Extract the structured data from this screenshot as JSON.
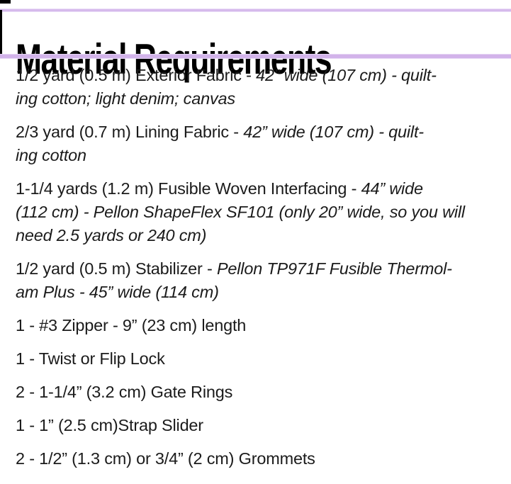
{
  "page": {
    "background": "#ffffff",
    "accent_rule_color": "#d5b9ec",
    "accent_rule_edge_color": "#e9dcf6",
    "text_color": "#1b1b1b",
    "border_color": "#000000"
  },
  "header": {
    "title": "Material Requirements"
  },
  "materials": [
    {
      "lines": [
        [
          {
            "t": "1/2 yard (0.5 m) Exterior Fabric - "
          },
          {
            "t": "42” wide (107 cm) - quilt-",
            "i": true
          }
        ],
        [
          {
            "t": "ing cotton; light denim; canvas",
            "i": true
          }
        ]
      ]
    },
    {
      "lines": [
        [
          {
            "t": "2/3 yard (0.7 m) Lining Fabric - "
          },
          {
            "t": "42” wide (107 cm) - quilt-",
            "i": true
          }
        ],
        [
          {
            "t": "ing cotton",
            "i": true
          }
        ]
      ]
    },
    {
      "lines": [
        [
          {
            "t": "1-1/4 yards (1.2 m) Fusible Woven Interfacing - "
          },
          {
            "t": "44” wide",
            "i": true
          }
        ],
        [
          {
            "t": "(112 cm) - Pellon ShapeFlex SF101 (only 20” wide, so you will",
            "i": true
          }
        ],
        [
          {
            "t": "need 2.5 yards or 240 cm)",
            "i": true
          }
        ]
      ]
    },
    {
      "lines": [
        [
          {
            "t": "1/2 yard (0.5 m) Stabilizer - "
          },
          {
            "t": "Pellon TP971F Fusible Thermol-",
            "i": true
          }
        ],
        [
          {
            "t": "am Plus - 45” wide (114 cm)",
            "i": true
          }
        ]
      ]
    },
    {
      "lines": [
        [
          {
            "t": "1 - #3 Zipper - 9” (23 cm) length"
          }
        ]
      ]
    },
    {
      "lines": [
        [
          {
            "t": "1 - Twist or Flip Lock"
          }
        ]
      ]
    },
    {
      "lines": [
        [
          {
            "t": "2 - 1-1/4” (3.2 cm) Gate Rings"
          }
        ]
      ]
    },
    {
      "lines": [
        [
          {
            "t": "1 - 1” (2.5 cm)Strap Slider"
          }
        ]
      ]
    },
    {
      "lines": [
        [
          {
            "t": "2 - 1/2” (1.3 cm) or 3/4” (2 cm) Grommets"
          }
        ]
      ]
    }
  ]
}
